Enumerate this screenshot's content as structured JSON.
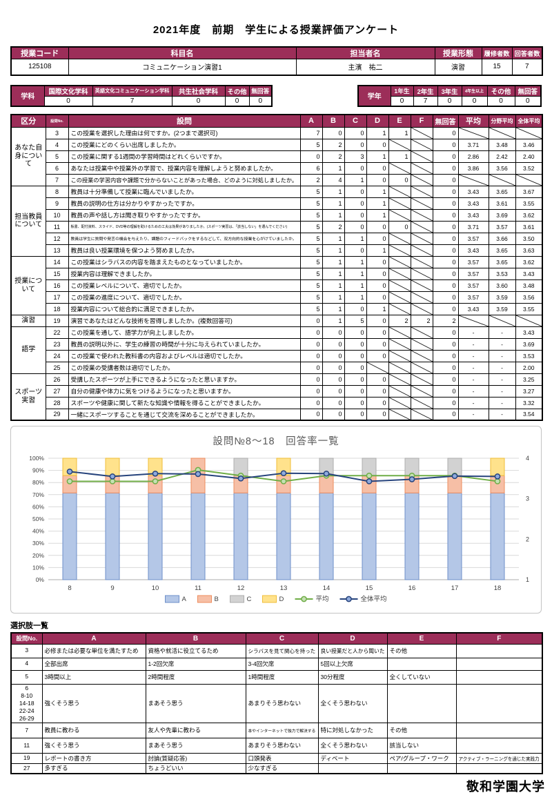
{
  "page": {
    "title": "2021年度　前期　学生による授業評価アンケート",
    "footer": "敬和学園大学"
  },
  "colors": {
    "accent": "#9C2E59",
    "header_text": "#ffffff",
    "chart_title": "#595959",
    "grid": "#D9D9D9"
  },
  "course_table": {
    "headers": [
      "授業コード",
      "科目名",
      "担当者名",
      "授業形態",
      "履修者数",
      "回答者数"
    ],
    "values": [
      "125108",
      "コミュニケーション演習1",
      "主濱　祐二",
      "演習",
      "15",
      "7"
    ]
  },
  "department_table": {
    "label": "学科",
    "headers": [
      "国際文化学科",
      "英語文化コミュニケーション学科",
      "共生社会学科",
      "その他",
      "無回答"
    ],
    "values": [
      "0",
      "7",
      "0",
      "0",
      "0"
    ]
  },
  "grade_table": {
    "label": "学年",
    "headers": [
      "1年生",
      "2年生",
      "3年生",
      "4年生以上",
      "その他",
      "無回答"
    ],
    "values": [
      "0",
      "7",
      "0",
      "0",
      "0",
      "0"
    ]
  },
  "main_table": {
    "headers": [
      "区分",
      "設問No.",
      "設問",
      "A",
      "B",
      "C",
      "D",
      "E",
      "F",
      "無回答",
      "平均",
      "分野平均",
      "全体平均"
    ],
    "diag_marker": "X",
    "sections": [
      {
        "label": "あなた自身について",
        "rows": [
          {
            "no": "3",
            "q": "この授業を選択した理由は何ですか。(2つまで選択可)",
            "cells": [
              "7",
              "0",
              "0",
              "1",
              "1",
              "X",
              "0",
              "X",
              "X",
              "X"
            ]
          },
          {
            "no": "4",
            "q": "この授業にどのくらい出席しましたか。",
            "cells": [
              "5",
              "2",
              "0",
              "0",
              "X",
              "X",
              "0",
              "3.71",
              "3.48",
              "3.46"
            ]
          },
          {
            "no": "5",
            "q": "この授業に関する1週間の学習時間はどれくらいですか。",
            "cells": [
              "0",
              "2",
              "3",
              "1",
              "1",
              "X",
              "0",
              "2.86",
              "2.42",
              "2.40"
            ]
          },
          {
            "no": "6",
            "q": "あなたは授業中や授業外の学習で、授業内容を理解しようと努めましたか。",
            "cells": [
              "6",
              "1",
              "0",
              "0",
              "X",
              "X",
              "0",
              "3.86",
              "3.56",
              "3.52"
            ]
          },
          {
            "no": "7",
            "q": "この授業の学習内容や課題で分からないことがあった場合、どのように対処しましたか。",
            "cells": [
              "2",
              "4",
              "1",
              "0",
              "0",
              "X",
              "0",
              "X",
              "X",
              "X"
            ]
          }
        ]
      },
      {
        "label": "担当教員について",
        "rows": [
          {
            "no": "8",
            "q": "教員は十分準備して授業に臨んでいましたか。",
            "cells": [
              "5",
              "1",
              "0",
              "1",
              "X",
              "X",
              "0",
              "3.43",
              "3.65",
              "3.67"
            ]
          },
          {
            "no": "9",
            "q": "教員の説明の仕方は分かりやすかったですか。",
            "cells": [
              "5",
              "1",
              "0",
              "1",
              "X",
              "X",
              "0",
              "3.43",
              "3.61",
              "3.55"
            ]
          },
          {
            "no": "10",
            "q": "教員の声や話し方は聞き取りやすかったですか。",
            "cells": [
              "5",
              "1",
              "0",
              "1",
              "X",
              "X",
              "0",
              "3.43",
              "3.69",
              "3.62"
            ]
          },
          {
            "no": "11",
            "q": "板書、配付資料、スライド、DVD等の理解を助けるための工夫は効果がありましたか。(スポーツ実習は、「該当しない」を選んでください)",
            "cells": [
              "5",
              "2",
              "0",
              "0",
              "0",
              "X",
              "0",
              "3.71",
              "3.57",
              "3.61"
            ]
          },
          {
            "no": "12",
            "q": "教員は学生に質問や発言の機会を与えたり、課題のフィードバックをするなどして、双方向的な授業を心がけていましたか。",
            "cells": [
              "5",
              "1",
              "1",
              "0",
              "X",
              "X",
              "0",
              "3.57",
              "3.66",
              "3.50"
            ]
          },
          {
            "no": "13",
            "q": "教員は良い授業環境を保つよう努めましたか。",
            "cells": [
              "5",
              "1",
              "0",
              "1",
              "X",
              "X",
              "0",
              "3.43",
              "3.65",
              "3.63"
            ]
          }
        ]
      },
      {
        "label": "授業について",
        "rows": [
          {
            "no": "14",
            "q": "この授業はシラバスの内容を踏まえたものとなっていましたか。",
            "cells": [
              "5",
              "1",
              "1",
              "0",
              "X",
              "X",
              "0",
              "3.57",
              "3.65",
              "3.62"
            ]
          },
          {
            "no": "15",
            "q": "授業内容は理解できましたか。",
            "cells": [
              "5",
              "1",
              "1",
              "0",
              "X",
              "X",
              "0",
              "3.57",
              "3.53",
              "3.43"
            ]
          },
          {
            "no": "16",
            "q": "この授業レベルについて、適切でしたか。",
            "cells": [
              "5",
              "1",
              "1",
              "0",
              "X",
              "X",
              "0",
              "3.57",
              "3.60",
              "3.48"
            ]
          },
          {
            "no": "17",
            "q": "この授業の進度について、適切でしたか。",
            "cells": [
              "5",
              "1",
              "1",
              "0",
              "X",
              "X",
              "0",
              "3.57",
              "3.59",
              "3.56"
            ]
          },
          {
            "no": "18",
            "q": "授業内容について総合的に満足できましたか。",
            "cells": [
              "5",
              "1",
              "0",
              "1",
              "X",
              "X",
              "0",
              "3.43",
              "3.59",
              "3.55"
            ]
          }
        ]
      },
      {
        "label": "演習",
        "rows": [
          {
            "no": "19",
            "q": "演習であなたはどんな技術を習得しましたか。(複数回答可)",
            "cells": [
              "0",
              "1",
              "5",
              "0",
              "2",
              "2",
              "2",
              "X",
              "X",
              "X"
            ]
          }
        ]
      },
      {
        "label": "語学",
        "rows": [
          {
            "no": "22",
            "q": "この授業を通して、語学力が向上しましたか。",
            "cells": [
              "0",
              "0",
              "0",
              "0",
              "X",
              "X",
              "0",
              "-",
              "-",
              "3.43"
            ]
          },
          {
            "no": "23",
            "q": "教員の説明以外に、学生の練習の時間が十分に与えられていましたか。",
            "cells": [
              "0",
              "0",
              "0",
              "0",
              "X",
              "X",
              "0",
              "-",
              "-",
              "3.69"
            ]
          },
          {
            "no": "24",
            "q": "この授業で使われた教科書の内容およびレベルは適切でしたか。",
            "cells": [
              "0",
              "0",
              "0",
              "0",
              "X",
              "X",
              "0",
              "-",
              "-",
              "3.53"
            ]
          },
          {
            "no": "25",
            "q": "この授業の受講者数は適切でしたか。",
            "cells": [
              "0",
              "0",
              "0",
              "X",
              "X",
              "X",
              "0",
              "-",
              "-",
              "2.00"
            ]
          }
        ]
      },
      {
        "label": "スポーツ実習",
        "rows": [
          {
            "no": "26",
            "q": "受講したスポーツが上手にできるようになったと思いますか。",
            "cells": [
              "0",
              "0",
              "0",
              "0",
              "X",
              "X",
              "0",
              "-",
              "-",
              "3.25"
            ]
          },
          {
            "no": "27",
            "q": "自分の健康や体力に気をつけるようになったと思いますか。",
            "cells": [
              "0",
              "0",
              "0",
              "0",
              "X",
              "X",
              "0",
              "-",
              "-",
              "3.27"
            ]
          },
          {
            "no": "28",
            "q": "スポーツや健康に関して新たな知識や情報を得ることができましたか。",
            "cells": [
              "0",
              "0",
              "0",
              "0",
              "X",
              "X",
              "0",
              "-",
              "-",
              "3.32"
            ]
          },
          {
            "no": "29",
            "q": "一緒にスポーツすることを通じて交流を深めることができましたか。",
            "cells": [
              "0",
              "0",
              "0",
              "0",
              "X",
              "X",
              "0",
              "-",
              "-",
              "3.54"
            ]
          }
        ]
      }
    ]
  },
  "chart_data": {
    "type": "bar",
    "subtype": "stacked-percent-with-lines",
    "title": "設問№8～18　回答率一覧",
    "categories": [
      "8",
      "9",
      "10",
      "11",
      "12",
      "13",
      "14",
      "15",
      "16",
      "17",
      "18"
    ],
    "series": [
      {
        "name": "A",
        "fill": "#B4C7E7",
        "stroke": "#6E8FC9",
        "values": [
          71.43,
          71.43,
          71.43,
          71.43,
          71.43,
          71.43,
          71.43,
          71.43,
          71.43,
          71.43,
          71.43
        ]
      },
      {
        "name": "B",
        "fill": "#F6BFA6",
        "stroke": "#ED8C5E",
        "values": [
          14.29,
          14.29,
          14.29,
          28.57,
          14.29,
          14.29,
          14.29,
          14.29,
          14.29,
          14.29,
          14.29
        ]
      },
      {
        "name": "C",
        "fill": "#D2D2D2",
        "stroke": "#ADADAD",
        "values": [
          0,
          0,
          0,
          0,
          14.29,
          0,
          14.29,
          14.29,
          14.29,
          14.29,
          0
        ]
      },
      {
        "name": "D",
        "fill": "#FFE28C",
        "stroke": "#EFBE3A",
        "values": [
          14.29,
          14.29,
          14.29,
          0,
          0,
          14.29,
          0,
          0,
          0,
          0,
          14.29
        ]
      }
    ],
    "lines": [
      {
        "name": "平均",
        "color": "#6FAD46",
        "marker_fill": "#C5E0B4",
        "values": [
          3.43,
          3.43,
          3.43,
          3.71,
          3.57,
          3.43,
          3.57,
          3.57,
          3.57,
          3.57,
          3.43
        ]
      },
      {
        "name": "全体平均",
        "color": "#26437C",
        "marker_fill": "#8FAADC",
        "values": [
          3.67,
          3.55,
          3.62,
          3.61,
          3.5,
          3.63,
          3.62,
          3.43,
          3.48,
          3.56,
          3.55
        ]
      }
    ],
    "left_axis_ticks": [
      "0%",
      "10%",
      "20%",
      "30%",
      "40%",
      "50%",
      "60%",
      "70%",
      "80%",
      "90%",
      "100%"
    ],
    "right_axis_ticks": [
      "1",
      "2",
      "3",
      "4"
    ],
    "right_axis_range": [
      1,
      4
    ],
    "legend": [
      "A",
      "B",
      "C",
      "D",
      "平均",
      "全体平均"
    ],
    "legend_position": "bottom",
    "grid": true
  },
  "options_section": {
    "title": "選択肢一覧",
    "headers": [
      "設問No.",
      "A",
      "B",
      "C",
      "D",
      "E",
      "F"
    ],
    "rows": [
      {
        "no": "3",
        "cells": [
          "必修または必要な単位を満たすため",
          "資格や就活に役立てるため",
          "シラバスを見て関心を持った",
          "良い授業だと人から聞いた",
          "その他",
          ""
        ]
      },
      {
        "no": "4",
        "cells": [
          "全部出席",
          "1-2回欠席",
          "3-4回欠席",
          "5回以上欠席",
          "",
          ""
        ]
      },
      {
        "no": "5",
        "cells": [
          "3時間以上",
          "2時間程度",
          "1時間程度",
          "30分程度",
          "全くしていない",
          ""
        ]
      },
      {
        "no": "6\n8-10\n14-18\n22-24\n26-29",
        "cells": [
          "強くそう思う",
          "まあそう思う",
          "あまりそう思わない",
          "全くそう思わない",
          "",
          ""
        ]
      },
      {
        "no": "7",
        "cells": [
          "教員に教わる",
          "友人や先輩に教わる",
          "本やインターネットで独力で解決する",
          "特に対処しなかった",
          "その他",
          ""
        ]
      },
      {
        "no": "11",
        "cells": [
          "強くそう思う",
          "まあそう思う",
          "あまりそう思わない",
          "全くそう思わない",
          "該当しない",
          ""
        ]
      },
      {
        "no": "19",
        "cells": [
          "レポートの書き方",
          "討論(質疑応答)",
          "口頭発表",
          "ディベート",
          "ペア/グループ・ワーク",
          "アクティブ・ラーニングを通じた実践力"
        ]
      },
      {
        "no": "27",
        "cells": [
          "多すぎる",
          "ちょうどいい",
          "少なすぎる",
          "",
          "",
          ""
        ]
      }
    ]
  }
}
